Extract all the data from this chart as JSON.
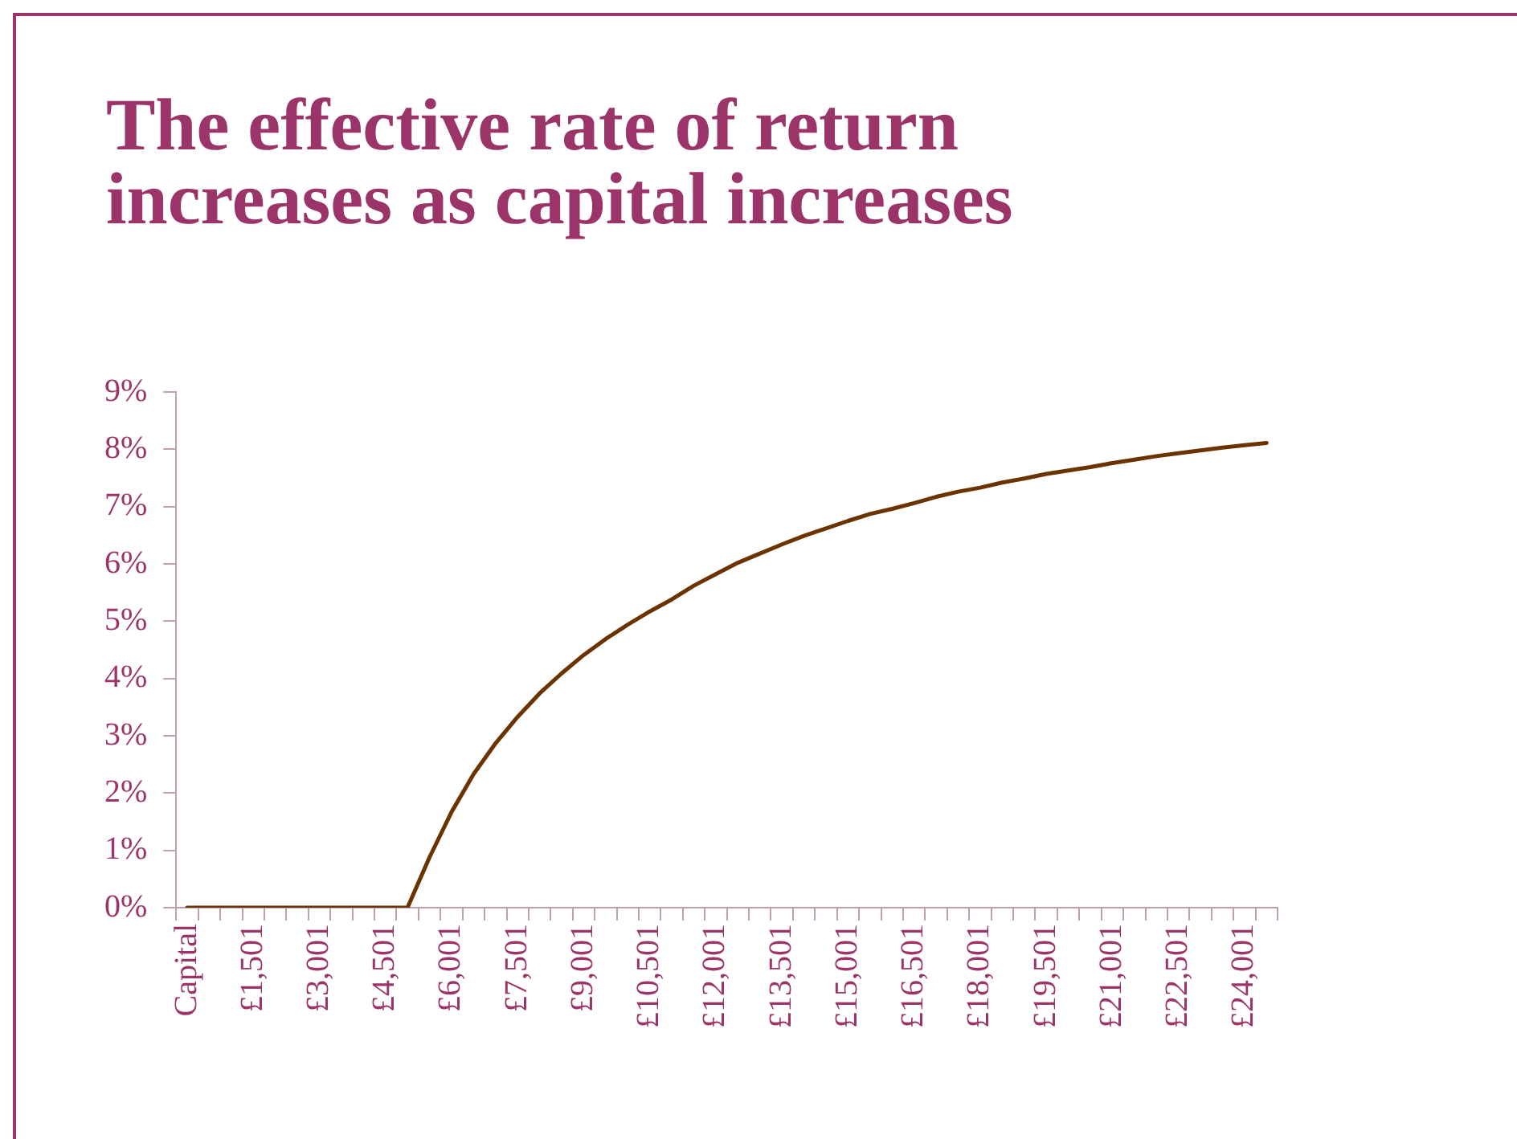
{
  "chart_data": {
    "type": "line",
    "title": "The effective rate of return increases as capital increases",
    "categories": [
      "Capital",
      null,
      null,
      "£1,501",
      null,
      null,
      "£3,001",
      null,
      null,
      "£4,501",
      null,
      null,
      "£6,001",
      null,
      null,
      "£7,501",
      null,
      null,
      "£9,001",
      null,
      null,
      "£10,501",
      null,
      null,
      "£12,001",
      null,
      null,
      "£13,501",
      null,
      null,
      "£15,001",
      null,
      null,
      "£16,501",
      null,
      null,
      "£18,001",
      null,
      null,
      "£19,501",
      null,
      null,
      "£21,001",
      null,
      null,
      "£22,501",
      null,
      null,
      "£24,001",
      null
    ],
    "series": [
      {
        "color": "#6b3300",
        "values": [
          0,
          0,
          0,
          0,
          0,
          0,
          0,
          0,
          0,
          0,
          0,
          0.88,
          1.67,
          2.33,
          2.87,
          3.33,
          3.74,
          4.09,
          4.41,
          4.69,
          4.94,
          5.17,
          5.38,
          5.62,
          5.82,
          6.02,
          6.18,
          6.34,
          6.49,
          6.62,
          6.75,
          6.87,
          6.96,
          7.06,
          7.17,
          7.26,
          7.33,
          7.42,
          7.49,
          7.57,
          7.63,
          7.69,
          7.76,
          7.82,
          7.88,
          7.93,
          7.98,
          8.03,
          8.07,
          8.11
        ]
      }
    ],
    "ylim": [
      0,
      9
    ],
    "yticks": [
      {
        "value": 0,
        "label": "0%"
      },
      {
        "value": 1,
        "label": "1%"
      },
      {
        "value": 2,
        "label": "2%"
      },
      {
        "value": 3,
        "label": "3%"
      },
      {
        "value": 4,
        "label": "4%"
      },
      {
        "value": 5,
        "label": "5%"
      },
      {
        "value": 6,
        "label": "6%"
      },
      {
        "value": 7,
        "label": "7%"
      },
      {
        "value": 8,
        "label": "8%"
      },
      {
        "value": 9,
        "label": "9%"
      }
    ],
    "grid": false,
    "legend": false,
    "marker": "none",
    "line_style": "solid"
  }
}
